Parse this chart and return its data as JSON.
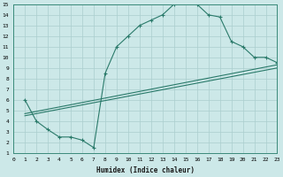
{
  "xlabel": "Humidex (Indice chaleur)",
  "xlim": [
    0,
    23
  ],
  "ylim": [
    1,
    15
  ],
  "xticks": [
    0,
    1,
    2,
    3,
    4,
    5,
    6,
    7,
    8,
    9,
    10,
    11,
    12,
    13,
    14,
    15,
    16,
    17,
    18,
    19,
    20,
    21,
    22,
    23
  ],
  "yticks": [
    1,
    2,
    3,
    4,
    5,
    6,
    7,
    8,
    9,
    10,
    11,
    12,
    13,
    14,
    15
  ],
  "bg_color": "#cce8e8",
  "line_color": "#2a7a6a",
  "grid_color": "#aacece",
  "curve1_x": [
    1,
    2,
    3,
    4,
    5,
    6,
    7,
    8,
    9,
    10,
    11,
    12,
    13,
    14,
    15,
    16,
    17,
    18,
    19,
    20,
    21,
    22,
    23
  ],
  "curve1_y": [
    6,
    4,
    3.2,
    2.5,
    2.5,
    2.2,
    1.5,
    8.5,
    11,
    12,
    13,
    13.5,
    14,
    15,
    15.2,
    15,
    14,
    13.8,
    11.5,
    11,
    10,
    10,
    9.5
  ],
  "line1_x": [
    1,
    23
  ],
  "line1_y": [
    4.5,
    9.0
  ],
  "line2_x": [
    1,
    23
  ],
  "line2_y": [
    4.7,
    9.3
  ],
  "marker_x": [
    1,
    2,
    3,
    4,
    5,
    6,
    7,
    8,
    9,
    10,
    11,
    12,
    13,
    14,
    15,
    16,
    17,
    18,
    19,
    20,
    21,
    22,
    23
  ],
  "marker_y": [
    6,
    4,
    3.2,
    2.5,
    2.5,
    2.2,
    1.5,
    8.5,
    11,
    12,
    13,
    13.5,
    14,
    15,
    15.2,
    15,
    14,
    13.8,
    11.5,
    11,
    10,
    10,
    9.5
  ]
}
